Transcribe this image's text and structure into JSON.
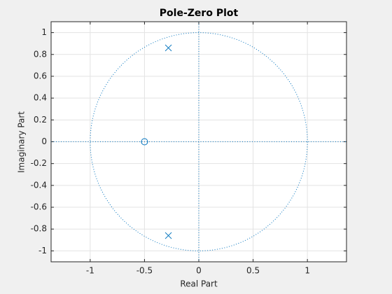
{
  "chart_data": {
    "type": "scatter",
    "title": "Pole-Zero Plot",
    "x_label": "Real Part",
    "y_label": "Imaginary Part",
    "xlim": [
      -1.36,
      1.36
    ],
    "ylim": [
      -1.1,
      1.1
    ],
    "xticks": [
      -1,
      -0.5,
      0,
      0.5,
      1
    ],
    "yticks": [
      -1,
      -0.8,
      -0.6,
      -0.4,
      -0.2,
      0,
      0.2,
      0.4,
      0.6,
      0.8,
      1
    ],
    "grid": true,
    "unit_circle": true,
    "series": [
      {
        "marker": "x",
        "color": "#0072bd",
        "x": [
          -0.28,
          -0.28
        ],
        "values": [
          0.86,
          -0.86
        ]
      },
      {
        "marker": "o",
        "color": "#0072bd",
        "x": [
          -0.5
        ],
        "values": [
          0
        ]
      }
    ]
  }
}
